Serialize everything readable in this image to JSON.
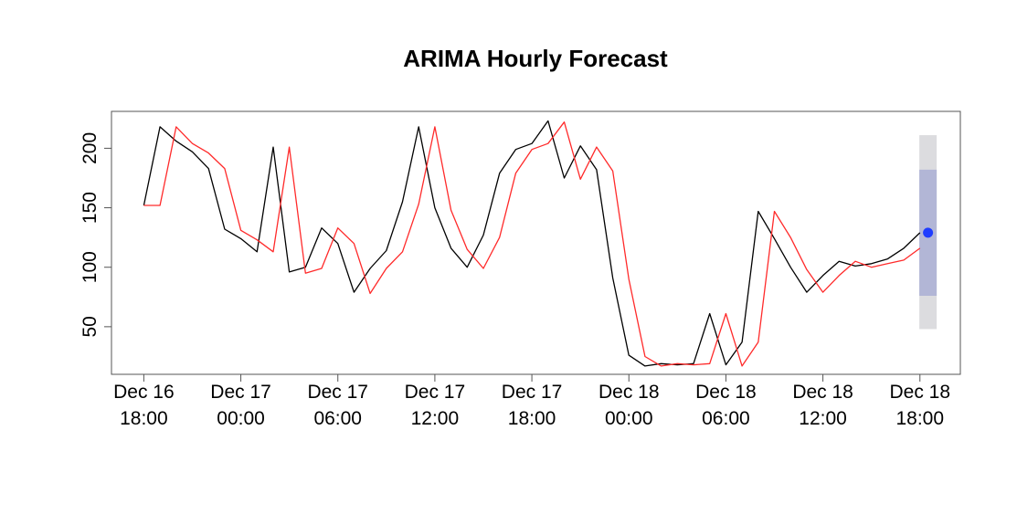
{
  "chart_data": {
    "type": "line",
    "title": "ARIMA Hourly Forecast",
    "xlabel": "",
    "ylabel": "",
    "x_ticks": [
      {
        "hours": 0,
        "line1": "Dec 16",
        "line2": "18:00"
      },
      {
        "hours": 6,
        "line1": "Dec 17",
        "line2": "00:00"
      },
      {
        "hours": 12,
        "line1": "Dec 17",
        "line2": "06:00"
      },
      {
        "hours": 18,
        "line1": "Dec 17",
        "line2": "12:00"
      },
      {
        "hours": 24,
        "line1": "Dec 17",
        "line2": "18:00"
      },
      {
        "hours": 30,
        "line1": "Dec 18",
        "line2": "00:00"
      },
      {
        "hours": 36,
        "line1": "Dec 18",
        "line2": "06:00"
      },
      {
        "hours": 42,
        "line1": "Dec 18",
        "line2": "12:00"
      },
      {
        "hours": 48,
        "line1": "Dec 18",
        "line2": "18:00"
      }
    ],
    "y_ticks": [
      50,
      100,
      150,
      200
    ],
    "xlim": [
      -2,
      50.5
    ],
    "ylim": [
      10,
      231
    ],
    "grid": false,
    "series": [
      {
        "color": "#000000",
        "x": [
          0,
          1,
          2,
          3,
          4,
          5,
          6,
          7,
          8,
          9,
          10,
          11,
          12,
          13,
          14,
          15,
          16,
          17,
          18,
          19,
          20,
          21,
          22,
          23,
          24,
          25,
          26,
          27,
          28,
          29,
          30,
          31,
          32,
          33,
          34,
          35,
          36,
          37,
          38,
          39,
          40,
          41,
          42,
          43,
          44,
          45,
          46,
          47,
          48
        ],
        "y": [
          152,
          218,
          206,
          197,
          183,
          132,
          124,
          113,
          201,
          96,
          100,
          133,
          120,
          79,
          99,
          114,
          155,
          218,
          150,
          116,
          100,
          127,
          179,
          199,
          204,
          223,
          175,
          202,
          182,
          91,
          26,
          17,
          19,
          18,
          19,
          61,
          18,
          37,
          147,
          124,
          100,
          79,
          93,
          105,
          101,
          103,
          107,
          116,
          129
        ]
      },
      {
        "color": "#ff2a2a",
        "x": [
          0,
          1,
          2,
          3,
          4,
          5,
          6,
          7,
          8,
          9,
          10,
          11,
          12,
          13,
          14,
          15,
          16,
          17,
          18,
          19,
          20,
          21,
          22,
          23,
          24,
          25,
          26,
          27,
          28,
          29,
          30,
          31,
          32,
          33,
          34,
          35,
          36,
          37,
          38,
          39,
          40,
          41,
          42,
          43,
          44,
          45,
          46,
          47,
          48
        ],
        "y": [
          152,
          152,
          218,
          204,
          196,
          183,
          131,
          123,
          113,
          201,
          95,
          99,
          133,
          120,
          78,
          99,
          113,
          153,
          218,
          148,
          115,
          99,
          125,
          179,
          199,
          204,
          222,
          174,
          201,
          181,
          90,
          25,
          17,
          19,
          18,
          19,
          61,
          17,
          37,
          147,
          125,
          98,
          79,
          93,
          105,
          100,
          103,
          106,
          116
        ]
      }
    ],
    "forecast": {
      "x": 48.5,
      "point": 129,
      "interval_80": [
        76,
        182
      ],
      "interval_95": [
        48,
        211
      ],
      "point_color": "#1e3cff",
      "interval_80_color": "#b2b6d6",
      "interval_95_color": "#dcdcdf"
    }
  }
}
